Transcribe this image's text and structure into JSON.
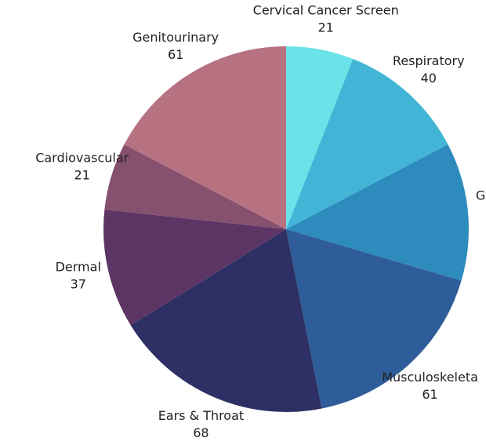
{
  "chart_data": {
    "type": "pie",
    "categories": [
      "Cervical Cancer Screen",
      "Respiratory",
      "G",
      "Musculoskeleta",
      "Ears & Throat",
      "Dermal",
      "Cardiovascular",
      "Genitourinary"
    ],
    "values": [
      21,
      40,
      43,
      61,
      68,
      37,
      21,
      61
    ],
    "value_labels": [
      "21",
      "40",
      null,
      "61",
      "68",
      "37",
      "21",
      "61"
    ],
    "colors": [
      "#6ae3e8",
      "#42b5d6",
      "#2e8bbd",
      "#2e5d99",
      "#2e3065",
      "#5c3564",
      "#86506f",
      "#b77282"
    ]
  }
}
